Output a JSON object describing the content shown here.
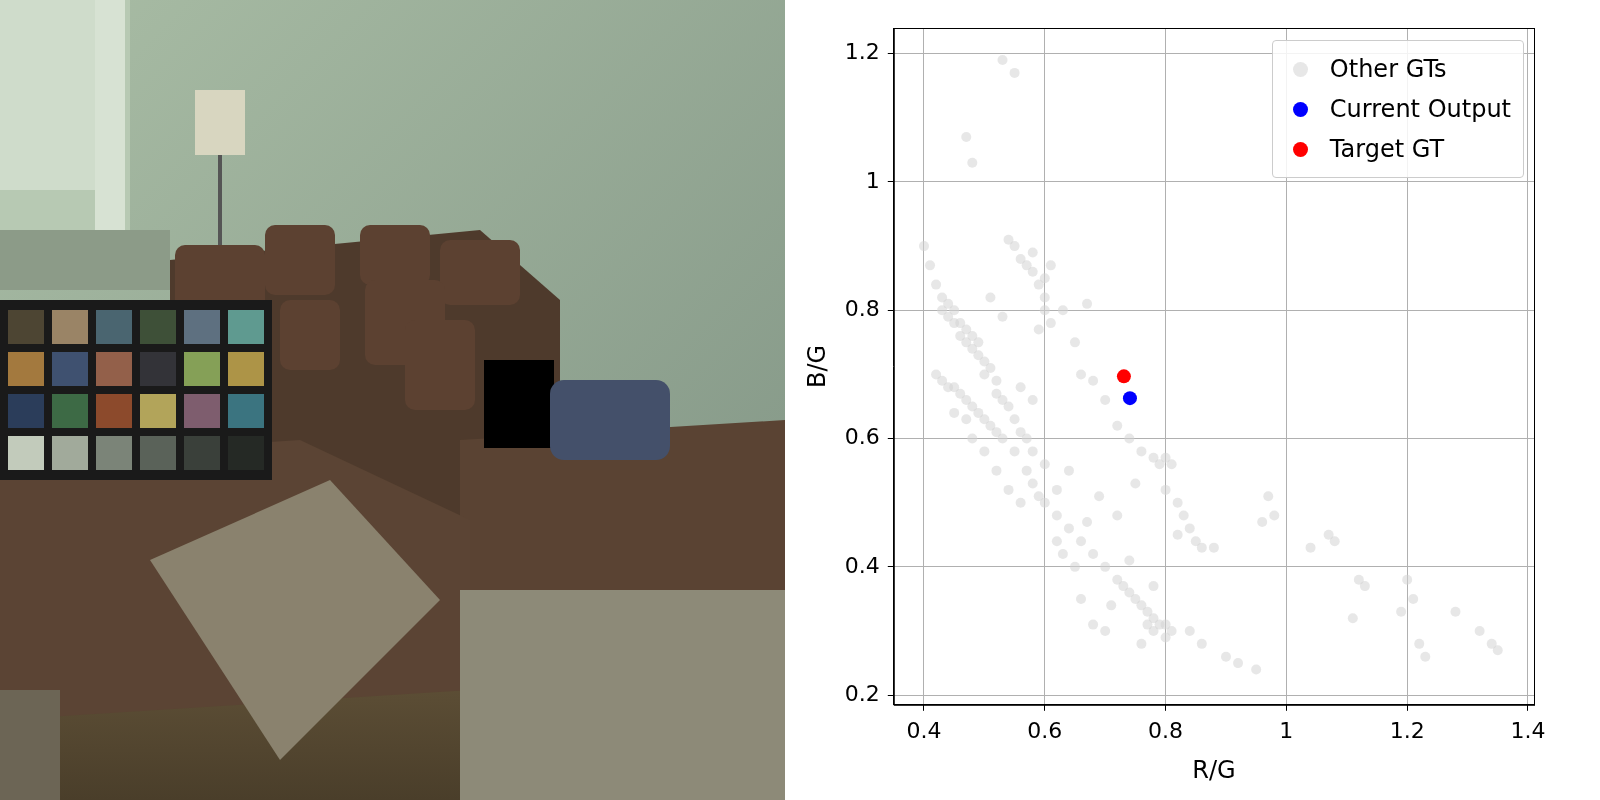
{
  "chart_data": {
    "type": "scatter",
    "x_label": "R/G",
    "y_label": "B/G",
    "xlim": [
      0.35,
      1.41
    ],
    "xticks": [
      0.4,
      0.6,
      0.8,
      1.0,
      1.2,
      1.4
    ],
    "ylim": [
      0.185,
      1.24
    ],
    "yticks": [
      0.2,
      0.4,
      0.6,
      0.8,
      1.0,
      1.2
    ],
    "grid": true,
    "legend": "upper right",
    "series": [
      {
        "name": "Other GTs",
        "color": "#d3d3d3",
        "marker": "o",
        "x": [
          0.4,
          0.41,
          0.42,
          0.43,
          0.43,
          0.44,
          0.44,
          0.45,
          0.45,
          0.46,
          0.46,
          0.47,
          0.47,
          0.48,
          0.48,
          0.49,
          0.49,
          0.5,
          0.5,
          0.51,
          0.52,
          0.52,
          0.53,
          0.54,
          0.55,
          0.56,
          0.57,
          0.58,
          0.42,
          0.43,
          0.44,
          0.45,
          0.46,
          0.47,
          0.48,
          0.49,
          0.5,
          0.51,
          0.52,
          0.53,
          0.55,
          0.57,
          0.58,
          0.59,
          0.6,
          0.62,
          0.64,
          0.66,
          0.68,
          0.7,
          0.72,
          0.73,
          0.74,
          0.75,
          0.76,
          0.77,
          0.78,
          0.79,
          0.8,
          0.81,
          0.8,
          0.78,
          0.77,
          0.54,
          0.55,
          0.56,
          0.57,
          0.58,
          0.59,
          0.6,
          0.6,
          0.59,
          0.61,
          0.63,
          0.67,
          0.65,
          0.66,
          0.68,
          0.7,
          0.72,
          0.74,
          0.76,
          0.78,
          0.79,
          0.8,
          0.81,
          0.8,
          0.82,
          0.83,
          0.84,
          0.85,
          0.82,
          0.86,
          0.88,
          0.9,
          0.92,
          0.95,
          0.97,
          0.98,
          0.96,
          1.04,
          1.07,
          1.08,
          1.12,
          1.13,
          1.11,
          1.19,
          1.2,
          1.21,
          1.22,
          1.23,
          1.28,
          1.32,
          1.34,
          1.35,
          0.62,
          0.63,
          0.65,
          0.66,
          0.68,
          0.7,
          0.71,
          0.6,
          0.62,
          0.64,
          0.67,
          0.69,
          0.72,
          0.75,
          0.74,
          0.76,
          0.78,
          0.84,
          0.86,
          0.56,
          0.58,
          0.48,
          0.5,
          0.52,
          0.54,
          0.56,
          0.45,
          0.47,
          0.53,
          0.55,
          0.47,
          0.48,
          0.51,
          0.53,
          0.6,
          0.58,
          0.61
        ],
        "values": [
          0.9,
          0.87,
          0.84,
          0.82,
          0.8,
          0.81,
          0.79,
          0.8,
          0.78,
          0.78,
          0.76,
          0.77,
          0.75,
          0.76,
          0.74,
          0.73,
          0.75,
          0.72,
          0.7,
          0.71,
          0.69,
          0.67,
          0.66,
          0.65,
          0.63,
          0.61,
          0.6,
          0.58,
          0.7,
          0.69,
          0.68,
          0.68,
          0.67,
          0.66,
          0.65,
          0.64,
          0.63,
          0.62,
          0.61,
          0.6,
          0.58,
          0.55,
          0.53,
          0.51,
          0.5,
          0.48,
          0.46,
          0.44,
          0.42,
          0.4,
          0.38,
          0.37,
          0.36,
          0.35,
          0.34,
          0.33,
          0.32,
          0.31,
          0.31,
          0.3,
          0.29,
          0.3,
          0.31,
          0.91,
          0.9,
          0.88,
          0.87,
          0.86,
          0.84,
          0.82,
          0.8,
          0.77,
          0.78,
          0.8,
          0.81,
          0.75,
          0.7,
          0.69,
          0.66,
          0.62,
          0.6,
          0.58,
          0.57,
          0.56,
          0.57,
          0.56,
          0.52,
          0.5,
          0.48,
          0.46,
          0.44,
          0.45,
          0.43,
          0.43,
          0.26,
          0.25,
          0.24,
          0.51,
          0.48,
          0.47,
          0.43,
          0.45,
          0.44,
          0.38,
          0.37,
          0.32,
          0.33,
          0.38,
          0.35,
          0.28,
          0.26,
          0.33,
          0.3,
          0.28,
          0.27,
          0.44,
          0.42,
          0.4,
          0.35,
          0.31,
          0.3,
          0.34,
          0.56,
          0.52,
          0.55,
          0.47,
          0.51,
          0.48,
          0.53,
          0.41,
          0.28,
          0.37,
          0.3,
          0.28,
          0.68,
          0.66,
          0.6,
          0.58,
          0.55,
          0.52,
          0.5,
          0.64,
          0.63,
          1.19,
          1.17,
          1.07,
          1.03,
          0.82,
          0.79,
          0.85,
          0.89,
          0.87
        ]
      },
      {
        "name": "Current Output",
        "color": "#0000ff",
        "marker": "o",
        "x": [
          0.741
        ],
        "values": [
          0.663
        ]
      },
      {
        "name": "Target GT",
        "color": "#ff0000",
        "marker": "o",
        "x": [
          0.731
        ],
        "values": [
          0.697
        ]
      }
    ]
  }
}
